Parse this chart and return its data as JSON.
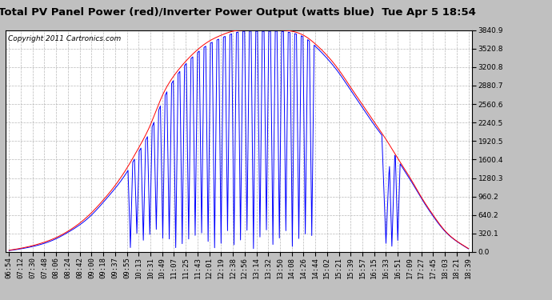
{
  "title": "Total PV Panel Power (red)/Inverter Power Output (watts blue)  Tue Apr 5 18:54",
  "copyright": "Copyright 2011 Cartronics.com",
  "yticks": [
    0.0,
    320.1,
    640.2,
    960.2,
    1280.3,
    1600.4,
    1920.5,
    2240.5,
    2560.6,
    2880.7,
    3200.8,
    3520.8,
    3840.9
  ],
  "xtick_labels": [
    "06:54",
    "07:12",
    "07:30",
    "07:48",
    "08:06",
    "08:24",
    "08:42",
    "09:00",
    "09:18",
    "09:37",
    "09:55",
    "10:13",
    "10:31",
    "10:49",
    "11:07",
    "11:25",
    "11:43",
    "12:01",
    "12:19",
    "12:38",
    "12:56",
    "13:14",
    "13:32",
    "13:50",
    "14:08",
    "14:26",
    "14:44",
    "15:02",
    "15:21",
    "15:39",
    "15:57",
    "16:15",
    "16:33",
    "16:51",
    "17:09",
    "17:27",
    "17:45",
    "18:03",
    "18:21",
    "18:39"
  ],
  "ymax": 3840.9,
  "ymin": 0.0,
  "pv_color": "#ff0000",
  "inv_color": "#0000ff",
  "bg_color": "#c0c0c0",
  "plot_bg": "#ffffff",
  "title_fontsize": 9.5,
  "copyright_fontsize": 6.5,
  "tick_fontsize": 6.5,
  "line_width": 0.7
}
